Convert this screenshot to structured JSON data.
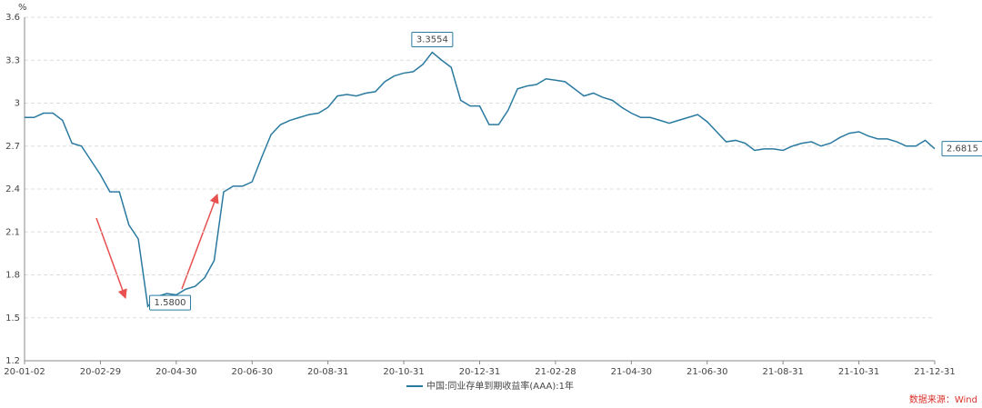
{
  "chart_data": {
    "type": "line",
    "y_label": "%",
    "source": "数据来源：Wind",
    "categories": [
      "20-01-02",
      null,
      null,
      null,
      null,
      null,
      null,
      null,
      "20-02-29",
      null,
      null,
      null,
      null,
      null,
      null,
      null,
      "20-04-30",
      null,
      null,
      null,
      null,
      null,
      null,
      null,
      "20-06-30",
      null,
      null,
      null,
      null,
      null,
      null,
      null,
      "20-08-31",
      null,
      null,
      null,
      null,
      null,
      null,
      null,
      "20-10-31",
      null,
      null,
      null,
      null,
      null,
      null,
      null,
      "20-12-31",
      null,
      null,
      null,
      null,
      null,
      null,
      null,
      "21-02-28",
      null,
      null,
      null,
      null,
      null,
      null,
      null,
      "21-04-30",
      null,
      null,
      null,
      null,
      null,
      null,
      null,
      "21-06-30",
      null,
      null,
      null,
      null,
      null,
      null,
      null,
      "21-08-31",
      null,
      null,
      null,
      null,
      null,
      null,
      null,
      "21-10-31",
      null,
      null,
      null,
      null,
      null,
      null,
      null,
      "21-12-31"
    ],
    "series": [
      {
        "name": "中国:同业存单到期收益率(AAA):1年",
        "color": "#2a7aa0",
        "values": [
          2.9,
          2.9,
          2.93,
          2.93,
          2.88,
          2.72,
          2.7,
          2.6,
          2.5,
          2.38,
          2.38,
          2.15,
          2.05,
          1.58,
          1.65,
          1.67,
          1.66,
          1.7,
          1.72,
          1.78,
          1.9,
          2.38,
          2.42,
          2.42,
          2.45,
          2.62,
          2.78,
          2.85,
          2.88,
          2.9,
          2.92,
          2.93,
          2.97,
          3.05,
          3.06,
          3.05,
          3.07,
          3.08,
          3.15,
          3.19,
          3.21,
          3.22,
          3.27,
          3.3554,
          3.3,
          3.25,
          3.02,
          2.98,
          2.98,
          2.85,
          2.85,
          2.95,
          3.1,
          3.12,
          3.13,
          3.17,
          3.16,
          3.15,
          3.1,
          3.05,
          3.07,
          3.04,
          3.02,
          2.97,
          2.93,
          2.9,
          2.9,
          2.88,
          2.86,
          2.88,
          2.9,
          2.92,
          2.87,
          2.8,
          2.73,
          2.74,
          2.72,
          2.67,
          2.68,
          2.68,
          2.67,
          2.7,
          2.72,
          2.73,
          2.7,
          2.72,
          2.76,
          2.79,
          2.8,
          2.77,
          2.75,
          2.75,
          2.73,
          2.7,
          2.7,
          2.74,
          2.6815
        ],
        "value_labels": [
          null,
          null,
          null,
          null,
          null,
          null,
          null,
          null,
          null,
          null,
          null,
          null,
          null,
          "1.5800",
          null,
          null,
          null,
          null,
          null,
          null,
          null,
          null,
          null,
          null,
          null,
          null,
          null,
          null,
          null,
          null,
          null,
          null,
          null,
          null,
          null,
          null,
          null,
          null,
          null,
          null,
          null,
          null,
          null,
          "3.3554",
          null,
          null,
          null,
          null,
          null,
          null,
          null,
          null,
          null,
          null,
          null,
          null,
          null,
          null,
          null,
          null,
          null,
          null,
          null,
          null,
          null,
          null,
          null,
          null,
          null,
          null,
          null,
          null,
          null,
          null,
          null,
          null,
          null,
          null,
          null,
          null,
          null,
          null,
          null,
          null,
          null,
          null,
          null,
          null,
          null,
          null,
          null,
          null,
          null,
          null,
          null,
          null,
          "2.6815"
        ]
      }
    ],
    "ylim": [
      1.2,
      3.6
    ],
    "yticks": [
      1.2,
      1.5,
      1.8,
      2.1,
      2.4,
      2.7,
      3,
      3.3,
      3.6
    ],
    "grid": true,
    "legend": "bottom"
  }
}
